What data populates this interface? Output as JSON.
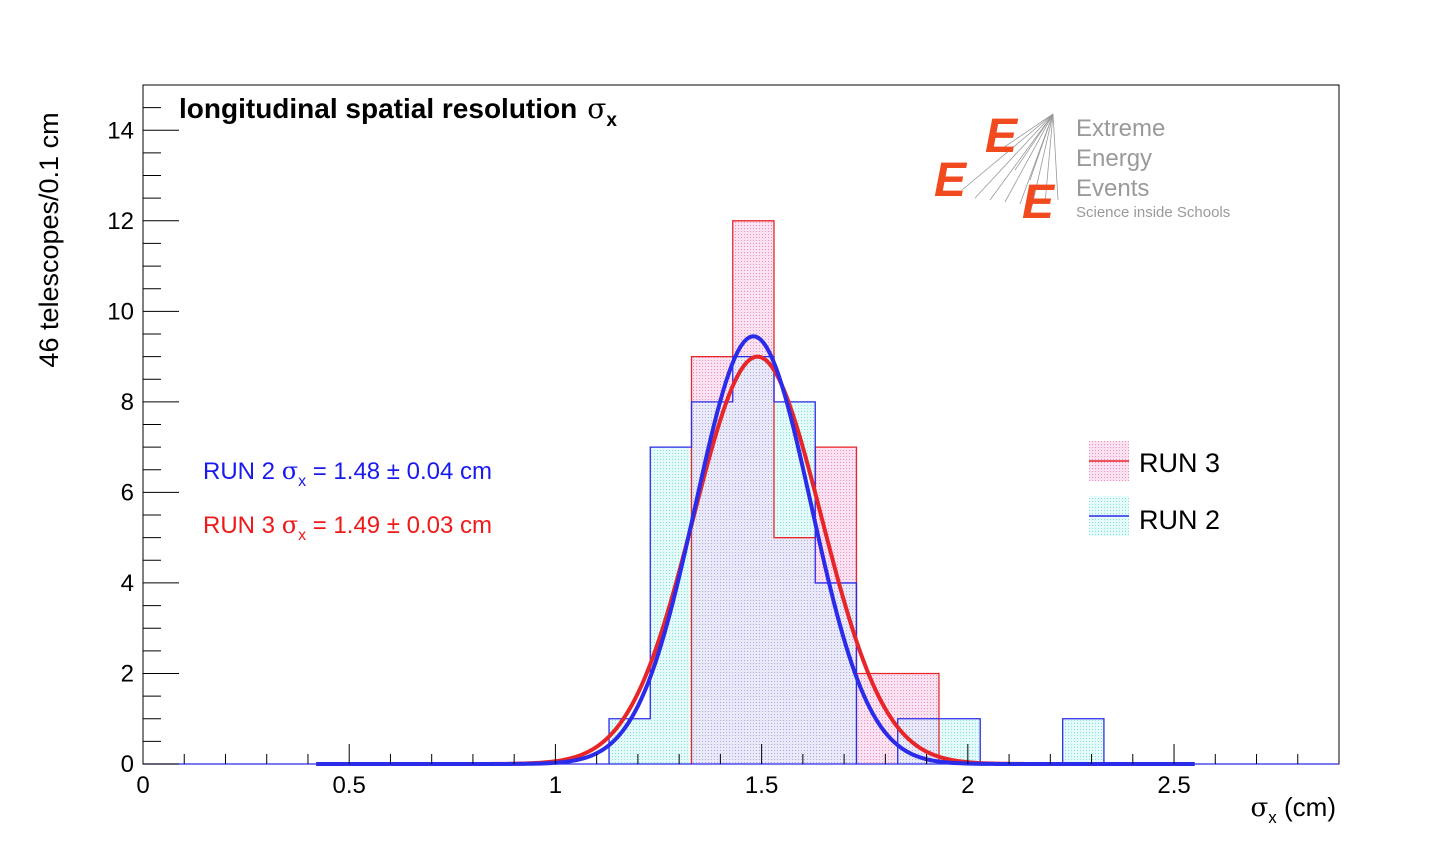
{
  "chart_data": {
    "type": "histogram",
    "title": "longitudinal spatial resolution",
    "title_symbol": "σ",
    "title_sub": "x",
    "xlabel_symbol": "σ",
    "xlabel_sub": "x",
    "xlabel_unit": " (cm)",
    "ylabel": "46 telescopes/0.1 cm",
    "xlim": [
      0,
      2.9
    ],
    "ylim": [
      0,
      15
    ],
    "x_ticks": [
      0,
      0.5,
      1,
      1.5,
      2,
      2.5
    ],
    "x_tick_labels": [
      "0",
      "0.5",
      "1",
      "1.5",
      "2",
      "2.5"
    ],
    "y_ticks": [
      0,
      2,
      4,
      6,
      8,
      10,
      12,
      14
    ],
    "y_tick_labels": [
      "0",
      "2",
      "4",
      "6",
      "8",
      "10",
      "12",
      "14"
    ],
    "grid": false,
    "legend_position": "right",
    "series": [
      {
        "name": "RUN 3",
        "color": "#e8262a",
        "fill": "#f7c6e2",
        "bins": [
          [
            1.33,
            1.43,
            9
          ],
          [
            1.43,
            1.53,
            12
          ],
          [
            1.53,
            1.63,
            5
          ],
          [
            1.63,
            1.73,
            7
          ],
          [
            1.73,
            1.83,
            2
          ],
          [
            1.83,
            1.93,
            2
          ]
        ],
        "fit": {
          "amplitude": 9.0,
          "mean": 1.49,
          "sigma": 0.155,
          "x_from": 0.42,
          "x_to": 2.55
        },
        "annotation_prefix": "RUN 3 ",
        "annotation_symbol": "σ",
        "annotation_sub": "x",
        "annotation_value": " = 1.49 ± 0.03 cm"
      },
      {
        "name": "RUN 2",
        "color": "#2b2bea",
        "fill": "#c9f7f4",
        "bins": [
          [
            1.13,
            1.23,
            1
          ],
          [
            1.23,
            1.33,
            7
          ],
          [
            1.33,
            1.43,
            8
          ],
          [
            1.43,
            1.53,
            9
          ],
          [
            1.53,
            1.63,
            8
          ],
          [
            1.63,
            1.73,
            4
          ],
          [
            1.83,
            1.93,
            1
          ],
          [
            1.93,
            2.03,
            1
          ],
          [
            2.23,
            2.33,
            1
          ]
        ],
        "fit": {
          "amplitude": 9.45,
          "mean": 1.48,
          "sigma": 0.14,
          "x_from": 0.42,
          "x_to": 2.55
        },
        "annotation_prefix": "RUN 2 ",
        "annotation_symbol": "σ",
        "annotation_sub": "x",
        "annotation_value": " = 1.48 ± 0.04 cm"
      }
    ],
    "overlap_fill": "#dcdcf5"
  },
  "logo": {
    "line1": "Extreme",
    "line2": "Energy",
    "line3": "Events",
    "line4": "Science inside Schools",
    "letter": "E",
    "text_color": "#9a9a9a",
    "mark_color": "#f04a1e"
  }
}
